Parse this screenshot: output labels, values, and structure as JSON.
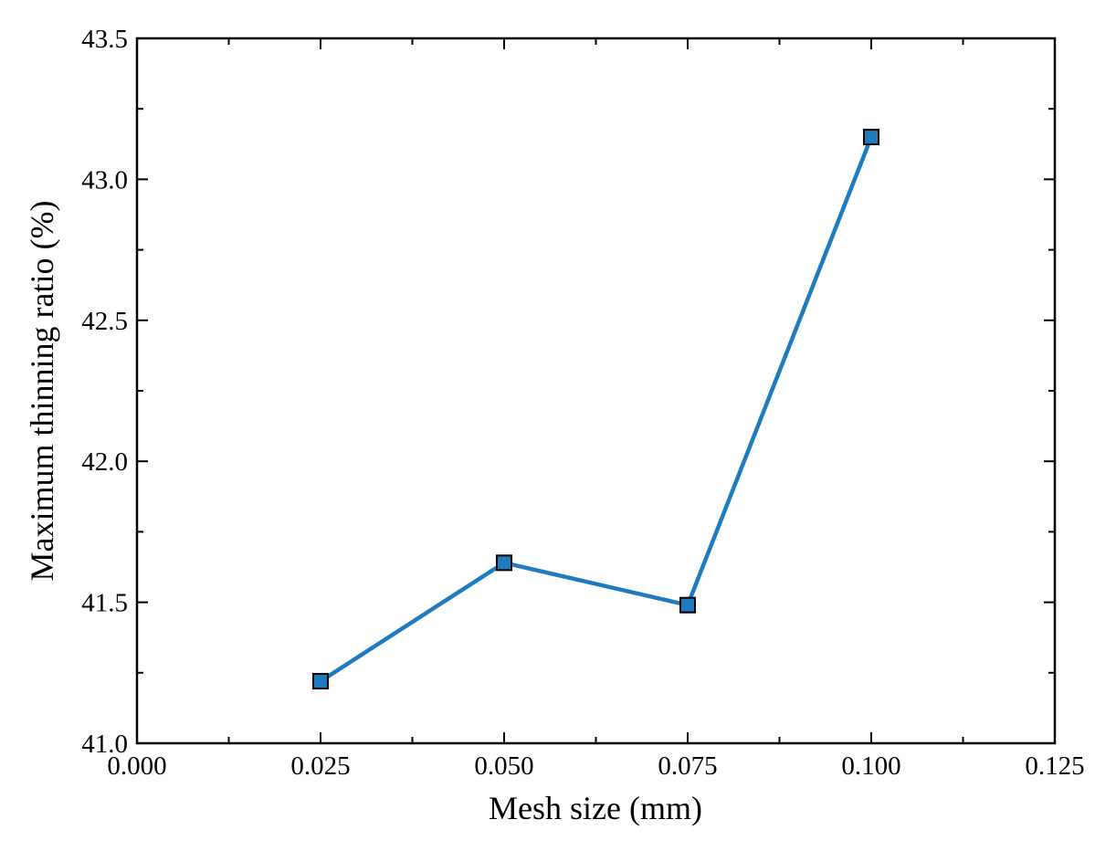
{
  "colors": {
    "series": "#1f7bbf"
  },
  "chart_data": {
    "type": "line",
    "xlabel": "Mesh size (mm)",
    "ylabel": "Maximum thinning ratio (%)",
    "xlim": [
      0.0,
      0.125
    ],
    "ylim": [
      41.0,
      43.5
    ],
    "x_ticks": [
      "0.000",
      "0.025",
      "0.050",
      "0.075",
      "0.100",
      "0.125"
    ],
    "y_ticks": [
      "41.0",
      "41.5",
      "42.0",
      "42.5",
      "43.0",
      "43.5"
    ],
    "x_minor_step": 0.0125,
    "y_minor_step": 0.25,
    "grid": false,
    "marker": "square",
    "series": [
      {
        "x": [
          0.025,
          0.05,
          0.075,
          0.1
        ],
        "y": [
          41.22,
          41.64,
          41.49,
          43.15
        ]
      }
    ]
  }
}
